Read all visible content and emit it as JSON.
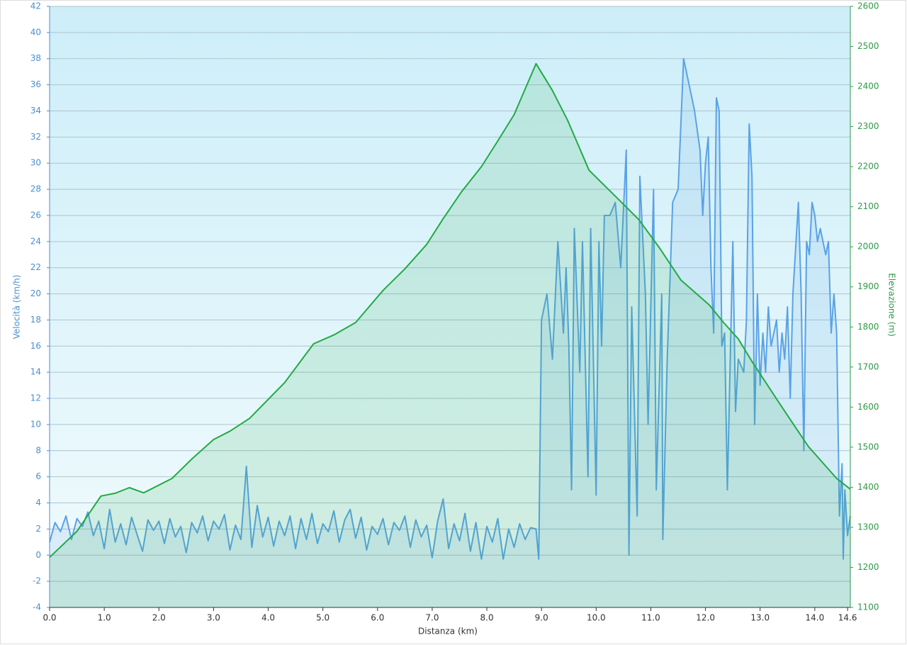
{
  "chart_data": {
    "type": "line",
    "x_label": "Distanza  (km)",
    "y_label": "Velocità (km/h)",
    "y2_label": "Elevazione (m)",
    "xlim": [
      0,
      14.65
    ],
    "ylim": [
      -4,
      42
    ],
    "y2lim": [
      1100,
      2600
    ],
    "xticks": [
      {
        "value": 0,
        "label": "0.0"
      },
      {
        "value": 1,
        "label": "1.0"
      },
      {
        "value": 2,
        "label": "2.0"
      },
      {
        "value": 3,
        "label": "3.0"
      },
      {
        "value": 4,
        "label": "4.0"
      },
      {
        "value": 5,
        "label": "5.0"
      },
      {
        "value": 6,
        "label": "6.0"
      },
      {
        "value": 7,
        "label": "7.0"
      },
      {
        "value": 8,
        "label": "8.0"
      },
      {
        "value": 9,
        "label": "9.0"
      },
      {
        "value": 10,
        "label": "10.0"
      },
      {
        "value": 11,
        "label": "11.0"
      },
      {
        "value": 12,
        "label": "12.0"
      },
      {
        "value": 13,
        "label": "13.0"
      },
      {
        "value": 14,
        "label": "14.0"
      },
      14.6
    ],
    "yticks": [
      -4,
      -2,
      0,
      2,
      4,
      6,
      8,
      10,
      12,
      14,
      16,
      18,
      20,
      22,
      24,
      26,
      28,
      30,
      32,
      34,
      36,
      38,
      40,
      42
    ],
    "y2ticks": [
      1100,
      1200,
      1300,
      1400,
      1500,
      1600,
      1700,
      1800,
      1900,
      2000,
      2100,
      2200,
      2300,
      2400,
      2500,
      2600
    ],
    "grid": true,
    "series": [
      {
        "color": "#5aa2e6",
        "axis": "y",
        "x": [
          0,
          0.1,
          0.2,
          0.3,
          0.4,
          0.5,
          0.6,
          0.7,
          0.8,
          0.9,
          1,
          1.1,
          1.2,
          1.3,
          1.4,
          1.5,
          1.6,
          1.7,
          1.8,
          1.9,
          2,
          2.1,
          2.2,
          2.3,
          2.4,
          2.5,
          2.6,
          2.7,
          2.8,
          2.9,
          3,
          3.1,
          3.2,
          3.3,
          3.4,
          3.5,
          3.6,
          3.7,
          3.8,
          3.9,
          4,
          4.1,
          4.2,
          4.3,
          4.4,
          4.5,
          4.6,
          4.7,
          4.8,
          4.9,
          5,
          5.1,
          5.2,
          5.3,
          5.4,
          5.5,
          5.6,
          5.7,
          5.8,
          5.9,
          6,
          6.1,
          6.2,
          6.3,
          6.4,
          6.5,
          6.6,
          6.7,
          6.8,
          6.9,
          7,
          7.1,
          7.2,
          7.3,
          7.4,
          7.5,
          7.6,
          7.7,
          7.8,
          7.9,
          8,
          8.1,
          8.2,
          8.3,
          8.4,
          8.5,
          8.6,
          8.7,
          8.8,
          8.9,
          8.95,
          9,
          9.1,
          9.2,
          9.3,
          9.4,
          9.45,
          9.5,
          9.55,
          9.6,
          9.7,
          9.75,
          9.85,
          9.9,
          10,
          10.05,
          10.1,
          10.15,
          10.25,
          10.35,
          10.45,
          10.55,
          10.6,
          10.65,
          10.75,
          10.8,
          10.9,
          10.95,
          11.05,
          11.1,
          11.2,
          11.22,
          11.3,
          11.4,
          11.5,
          11.55,
          11.6,
          11.7,
          11.8,
          11.9,
          11.95,
          12,
          12.05,
          12.1,
          12.15,
          12.2,
          12.25,
          12.3,
          12.35,
          12.4,
          12.5,
          12.55,
          12.6,
          12.7,
          12.75,
          12.8,
          12.85,
          12.9,
          12.95,
          13,
          13.05,
          13.1,
          13.15,
          13.2,
          13.3,
          13.35,
          13.4,
          13.45,
          13.5,
          13.55,
          13.6,
          13.7,
          13.75,
          13.8,
          13.85,
          13.9,
          13.95,
          14,
          14.05,
          14.1,
          14.2,
          14.25,
          14.3,
          14.35,
          14.4,
          14.45,
          14.5,
          14.52,
          14.55,
          14.6,
          14.65
        ],
        "values": [
          1.0,
          2.5,
          1.8,
          3.0,
          1.2,
          2.8,
          2.2,
          3.3,
          1.5,
          2.6,
          0.5,
          3.5,
          1.0,
          2.4,
          0.8,
          2.9,
          1.6,
          0.3,
          2.7,
          1.9,
          2.6,
          0.9,
          2.8,
          1.4,
          2.2,
          0.2,
          2.5,
          1.7,
          3.0,
          1.1,
          2.6,
          2.0,
          3.1,
          0.4,
          2.3,
          1.2,
          6.8,
          0.6,
          3.8,
          1.4,
          2.9,
          0.7,
          2.6,
          1.5,
          3.0,
          0.5,
          2.8,
          1.2,
          3.2,
          0.9,
          2.4,
          1.8,
          3.4,
          1.0,
          2.7,
          3.5,
          1.3,
          2.9,
          0.4,
          2.2,
          1.6,
          2.8,
          0.8,
          2.5,
          1.9,
          3.0,
          0.6,
          2.7,
          1.4,
          2.3,
          -0.2,
          2.6,
          4.3,
          0.5,
          2.4,
          1.1,
          3.2,
          0.3,
          2.5,
          -0.3,
          2.2,
          1.0,
          2.8,
          -0.3,
          2.0,
          0.6,
          2.4,
          1.2,
          2.1,
          2.0,
          -0.3,
          18,
          20,
          15,
          24,
          17,
          22,
          16,
          5,
          25,
          14,
          24,
          6,
          25,
          4.6,
          24,
          16,
          26,
          26,
          27,
          22,
          31,
          0,
          19,
          3,
          29,
          20,
          10,
          28,
          5,
          20,
          1.2,
          15,
          27,
          28,
          33,
          38,
          36,
          34,
          31,
          26,
          30,
          32,
          22,
          17,
          35,
          34,
          16,
          17,
          5,
          24,
          11,
          15,
          14,
          18,
          33,
          29,
          10,
          20,
          13,
          17,
          14,
          19,
          16,
          18,
          14,
          17,
          15,
          19,
          12,
          20,
          27,
          20,
          8,
          24,
          23,
          27,
          26,
          24,
          25,
          23,
          24,
          17,
          20,
          17,
          3,
          7,
          -0.3,
          5,
          1.5,
          3
        ]
      },
      {
        "color": "#22aa44",
        "axis": "y2",
        "x": [
          0,
          0.5,
          0.94,
          1.2,
          1.46,
          1.72,
          2.24,
          2.6,
          3.0,
          3.3,
          3.66,
          4.3,
          4.83,
          5.2,
          5.6,
          6.1,
          6.5,
          6.9,
          7.2,
          7.54,
          7.9,
          8.19,
          8.5,
          8.9,
          9.2,
          9.48,
          9.87,
          10.1,
          10.39,
          10.78,
          11.16,
          11.55,
          12.07,
          12.33,
          12.6,
          12.85,
          13.36,
          13.88,
          14.4,
          14.65
        ],
        "values": [
          1225,
          1290,
          1378,
          1385,
          1399,
          1386,
          1422,
          1470,
          1519,
          1540,
          1572,
          1661,
          1758,
          1780,
          1811,
          1891,
          1945,
          2006,
          2070,
          2138,
          2200,
          2262,
          2330,
          2457,
          2390,
          2315,
          2191,
          2160,
          2121,
          2068,
          1997,
          1917,
          1855,
          1811,
          1770,
          1714,
          1608,
          1502,
          1422,
          1395
        ]
      }
    ]
  }
}
